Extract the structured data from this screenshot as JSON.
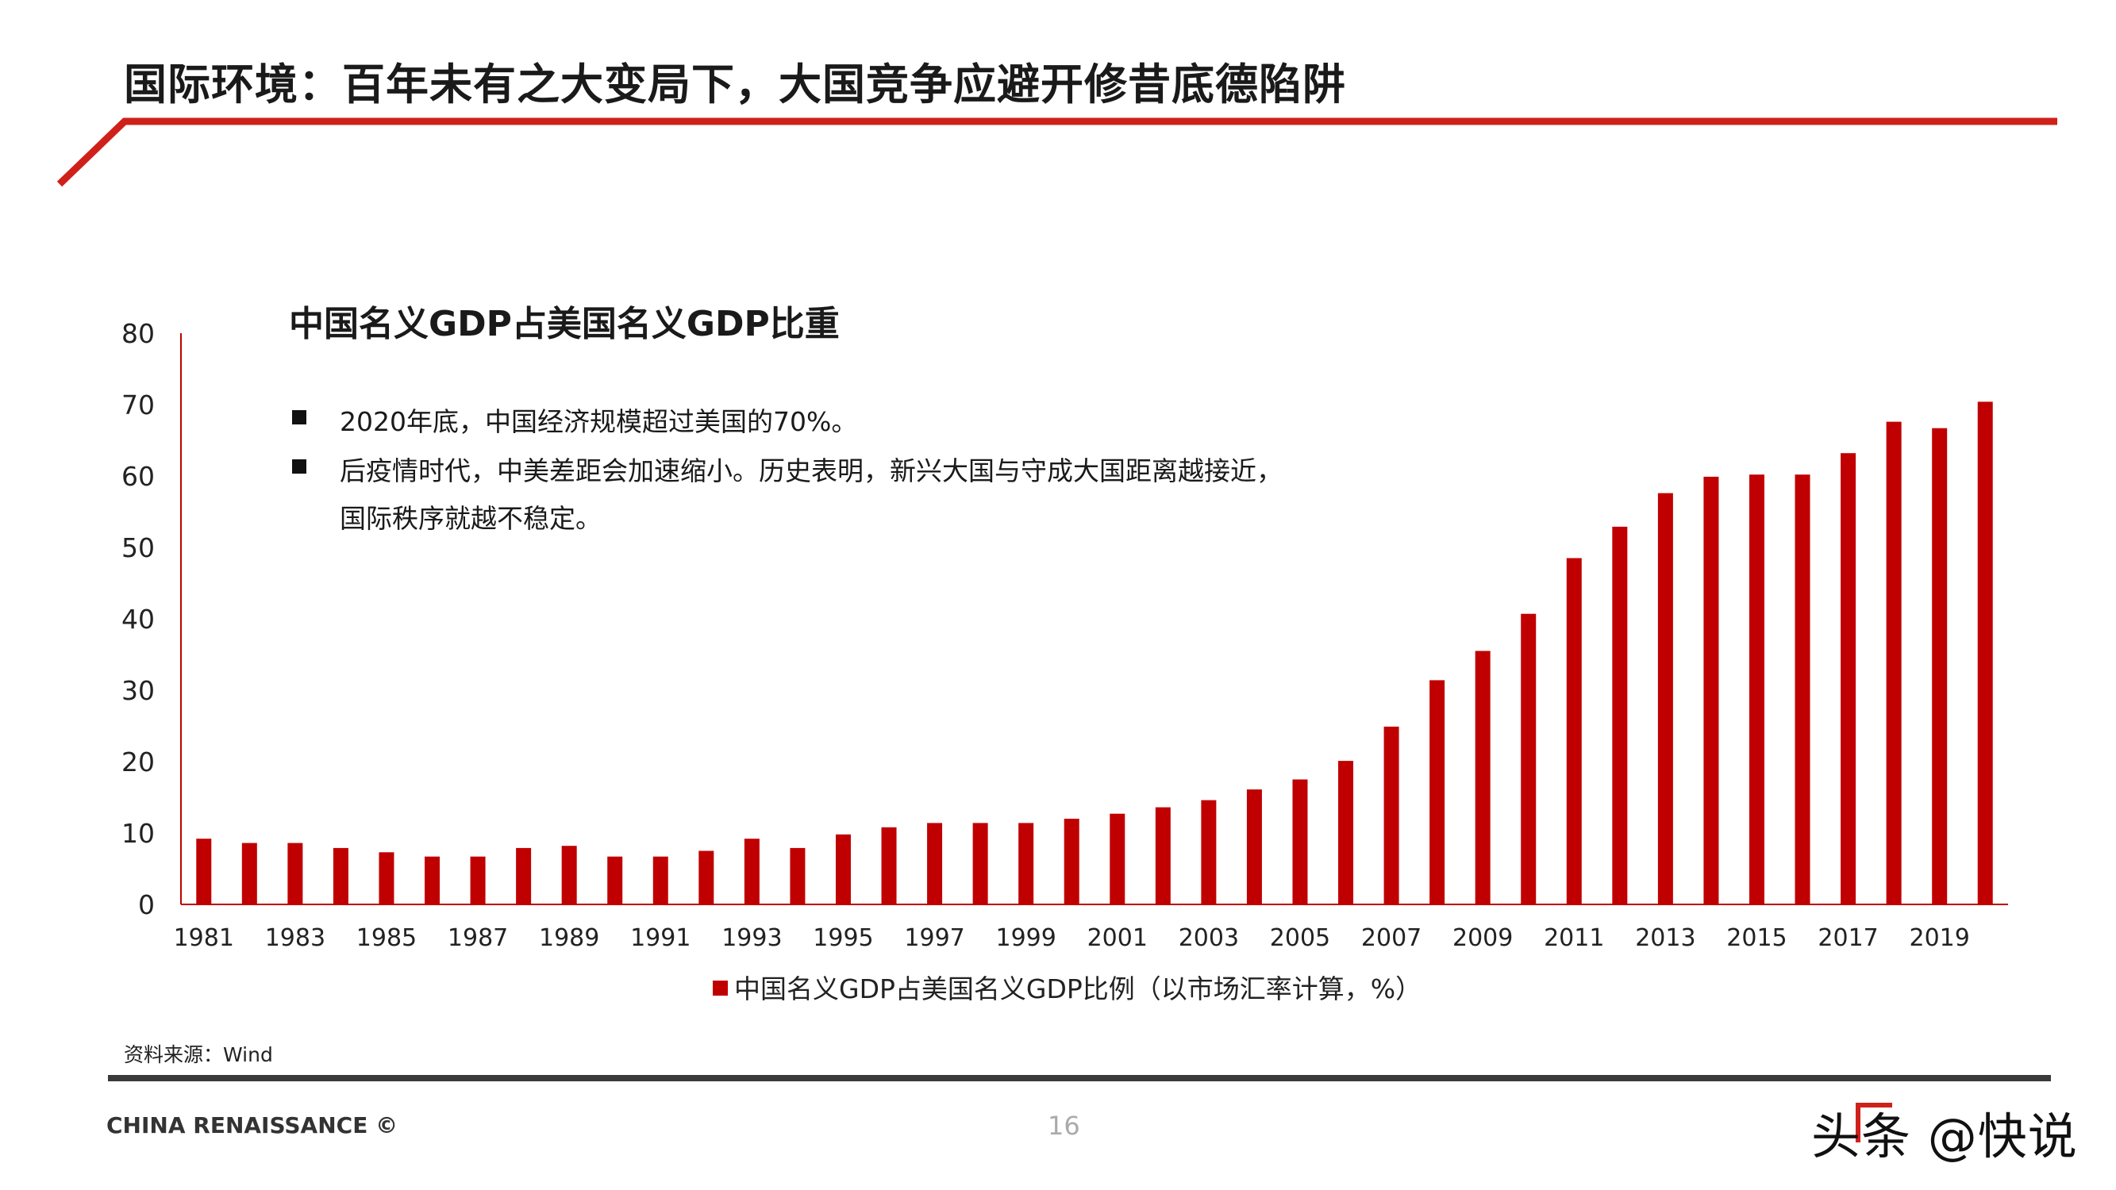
{
  "header": {
    "title": "国际环境：百年未有之大变局下，大国竞争应避开修昔底德陷阱"
  },
  "notes": [
    "2020年底，中国经济规模超过美国的70%。",
    "后疫情时代，中美差距会加速缩小。历史表明，新兴大国与守成大国距离越接近，",
    "国际秩序就越不稳定。"
  ],
  "chart_data": {
    "type": "bar",
    "title": "中国名义GDP占美国名义GDP比重",
    "categories": [
      "1981",
      "1982",
      "1983",
      "1984",
      "1985",
      "1986",
      "1987",
      "1988",
      "1989",
      "1990",
      "1991",
      "1992",
      "1993",
      "1994",
      "1995",
      "1996",
      "1997",
      "1998",
      "1999",
      "2000",
      "2001",
      "2002",
      "2003",
      "2004",
      "2005",
      "2006",
      "2007",
      "2008",
      "2009",
      "2010",
      "2011",
      "2012",
      "2013",
      "2014",
      "2015",
      "2016",
      "2017",
      "2018",
      "2019",
      "2020"
    ],
    "x_tick_labels": [
      "1981",
      "1983",
      "1985",
      "1987",
      "1989",
      "1991",
      "1993",
      "1995",
      "1997",
      "1999",
      "2001",
      "2003",
      "2005",
      "2007",
      "2009",
      "2011",
      "2013",
      "2015",
      "2017",
      "2019"
    ],
    "series": [
      {
        "name": "中国名义GDP占美国名义GDP比例（以市场汇率计算，%）",
        "values": [
          9.2,
          8.6,
          8.6,
          7.9,
          7.3,
          6.7,
          6.7,
          7.9,
          8.2,
          6.7,
          6.7,
          7.5,
          9.2,
          7.9,
          9.8,
          10.8,
          11.4,
          11.4,
          11.4,
          12.0,
          12.7,
          13.6,
          14.6,
          16.1,
          17.5,
          20.1,
          24.9,
          31.4,
          35.5,
          40.7,
          48.5,
          52.9,
          57.6,
          59.9,
          60.2,
          60.2,
          63.2,
          67.6,
          66.7,
          70.4
        ]
      }
    ],
    "y_ticks": [
      0,
      10,
      20,
      30,
      40,
      50,
      60,
      70,
      80
    ],
    "ylim": [
      0,
      80
    ],
    "grid": false,
    "legend_position": "bottom",
    "bar_color": "#c00000"
  },
  "footer": {
    "source": "资料来源：Wind",
    "company": "CHINA RENAISSANCE ©",
    "page_number": "16",
    "watermark": "头条 @快说"
  },
  "colors": {
    "accent": "#c00000",
    "header_line": "#d0201a",
    "footer_line": "#3a3a3a"
  }
}
